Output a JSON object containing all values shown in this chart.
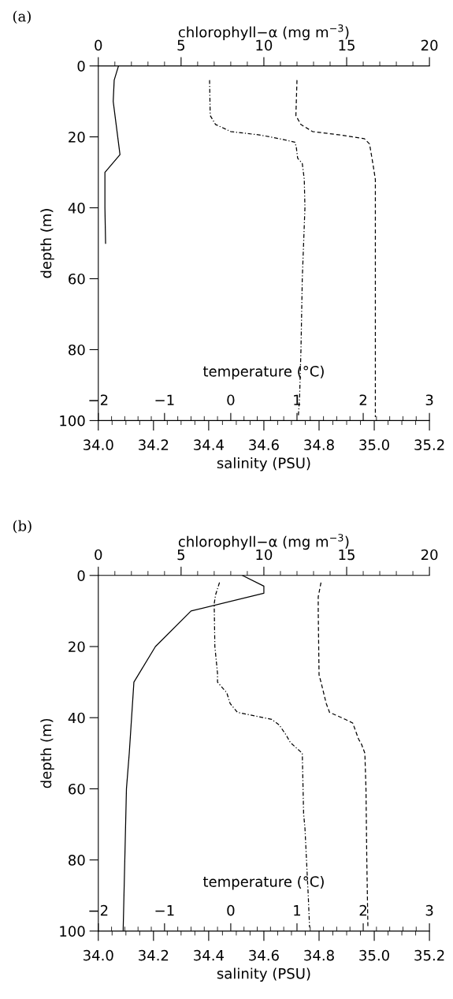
{
  "chart_data": [
    {
      "type": "line",
      "title": "(a)",
      "ylabel": "depth (m)",
      "xlabel": "salinity (PSU)",
      "x2label": "chlorophyll−α (mg m$^{−3}$)",
      "ylim": [
        100,
        0
      ],
      "yticks": [
        0,
        20,
        40,
        60,
        80,
        100
      ],
      "xlim": [
        34.0,
        35.2
      ],
      "xticks": [
        {
          "value": 34.0,
          "label": "34.0"
        },
        {
          "value": 34.2,
          "label": "34.2"
        },
        {
          "value": 34.4,
          "label": "34.4"
        },
        {
          "value": 34.6,
          "label": "34.6"
        },
        {
          "value": 34.8,
          "label": "34.8"
        },
        {
          "value": 35.0,
          "label": "35.0"
        },
        {
          "value": 35.2,
          "label": "35.2"
        }
      ],
      "x2lim": [
        0,
        20
      ],
      "x2ticks": [
        0,
        5,
        10,
        15,
        20
      ],
      "series": [
        {
          "axis": "x2",
          "line_style": "solid",
          "color": "#000000",
          "x": [
            1.22,
            0.96,
            0.9,
            1.31,
            0.4,
            0.4,
            0.44
          ],
          "values": [
            0,
            4,
            10,
            25,
            30,
            40,
            50
          ]
        },
        {
          "line_style": "dashed",
          "color": "#000000",
          "x": [
            34.72,
            34.716,
            34.734,
            34.776,
            34.88,
            34.964,
            34.983,
            34.996,
            35.004,
            35.004,
            35.004,
            35.004
          ],
          "values": [
            4,
            14,
            16.5,
            18.5,
            19.5,
            20.5,
            22,
            28,
            32,
            40,
            50,
            99
          ]
        }
      ]
    },
    {
      "type": "line",
      "xlabel": "temperature (°C)",
      "tick_labels": "x",
      "ylim": [
        100,
        0
      ],
      "xlim": [
        -2,
        3
      ],
      "xticks": [
        {
          "value": -2,
          "label": "−2"
        },
        {
          "value": -1,
          "label": "−1"
        },
        0,
        1,
        2,
        3
      ],
      "series": [
        {
          "line_style": "dashdot",
          "color": "#000000",
          "x": [
            -0.32,
            -0.31,
            -0.23,
            0.0,
            0.45,
            0.73,
            0.97,
            0.99,
            1.01,
            1.08,
            1.11,
            1.12,
            1.1,
            1.08,
            1.06,
            1.04,
            1.02
          ],
          "values": [
            4,
            14,
            16.5,
            18.5,
            19.5,
            20.5,
            21.5,
            23,
            26,
            27.5,
            32,
            40,
            50,
            60,
            80,
            93,
            99
          ]
        }
      ]
    },
    {
      "type": "line",
      "title": "(b)",
      "ylabel": "depth (m)",
      "xlabel": "salinity (PSU)",
      "x2label": "chlorophyll−α (mg m$^{−3}$)",
      "ylim": [
        100,
        0
      ],
      "yticks": [
        0,
        20,
        40,
        60,
        80,
        100
      ],
      "xlim": [
        34.0,
        35.2
      ],
      "xticks": [
        {
          "value": 34.0,
          "label": "34.0"
        },
        {
          "value": 34.2,
          "label": "34.2"
        },
        {
          "value": 34.4,
          "label": "34.4"
        },
        {
          "value": 34.6,
          "label": "34.6"
        },
        {
          "value": 34.8,
          "label": "34.8"
        },
        {
          "value": 35.0,
          "label": "35.0"
        },
        {
          "value": 35.2,
          "label": "35.2"
        }
      ],
      "x2lim": [
        0,
        20
      ],
      "x2ticks": [
        0,
        5,
        10,
        15,
        20
      ],
      "series": [
        {
          "axis": "x2",
          "line_style": "solid",
          "color": "#000000",
          "x": [
            8.7,
            10.0,
            10.0,
            5.6,
            3.45,
            2.15,
            1.87,
            1.7,
            1.5
          ],
          "values": [
            0,
            3,
            5,
            10,
            20,
            30,
            50,
            60,
            100
          ]
        },
        {
          "line_style": "dashed",
          "color": "#000000",
          "x": [
            34.807,
            34.797,
            34.797,
            34.8,
            34.807,
            34.826,
            34.838,
            34.896,
            34.922,
            34.943,
            34.954,
            34.966,
            34.97,
            34.973,
            34.977
          ],
          "values": [
            2,
            6,
            10,
            28,
            30,
            36,
            38.5,
            40.5,
            41.5,
            46,
            47.5,
            50,
            60,
            80,
            99
          ]
        }
      ]
    },
    {
      "type": "line",
      "xlabel": "temperature (°C)",
      "tick_labels": "x",
      "ylim": [
        100,
        0
      ],
      "xlim": [
        -2,
        3
      ],
      "xticks": [
        {
          "value": -2,
          "label": "−2"
        },
        {
          "value": -1,
          "label": "−1"
        },
        0,
        1,
        2,
        3
      ],
      "series": [
        {
          "line_style": "dashdot",
          "color": "#000000",
          "x": [
            -0.17,
            -0.23,
            -0.25,
            -0.24,
            -0.2,
            -0.2,
            -0.06,
            -0.01,
            0.1,
            0.36,
            0.62,
            0.73,
            0.84,
            0.9,
            1.08,
            1.1,
            1.12,
            1.17,
            1.19
          ],
          "values": [
            2,
            5.5,
            8,
            20,
            27.5,
            30,
            33,
            36,
            38.5,
            39.5,
            40.5,
            42,
            45,
            47,
            50,
            67,
            71,
            90,
            99
          ]
        }
      ]
    }
  ]
}
